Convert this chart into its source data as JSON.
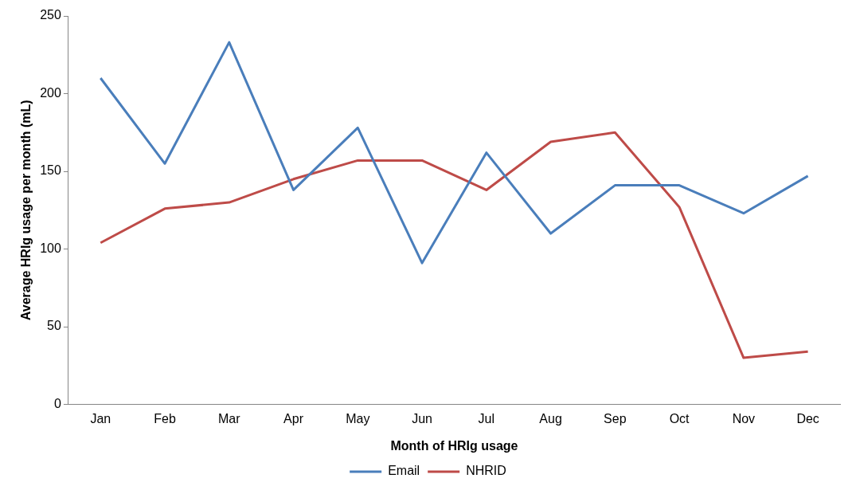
{
  "chart_data": {
    "type": "line",
    "xlabel": "Month of HRIg usage",
    "ylabel": "Average HRIg usage per month (mL)",
    "categories": [
      "Jan",
      "Feb",
      "Mar",
      "Apr",
      "May",
      "Jun",
      "Jul",
      "Aug",
      "Sep",
      "Oct",
      "Nov",
      "Dec"
    ],
    "series": [
      {
        "name": "Email",
        "color": "#4a7ebb",
        "values": [
          210,
          155,
          233,
          138,
          178,
          91,
          162,
          110,
          141,
          141,
          123,
          147
        ]
      },
      {
        "name": "NHRID",
        "color": "#be4b48",
        "values": [
          104,
          126,
          130,
          145,
          157,
          157,
          138,
          169,
          175,
          127,
          30,
          34
        ]
      }
    ],
    "ylim": [
      0,
      250
    ],
    "yticks": [
      0,
      50,
      100,
      150,
      200,
      250
    ],
    "grid": false,
    "legend": "bottom",
    "marker": "none",
    "line_style": "solid"
  }
}
